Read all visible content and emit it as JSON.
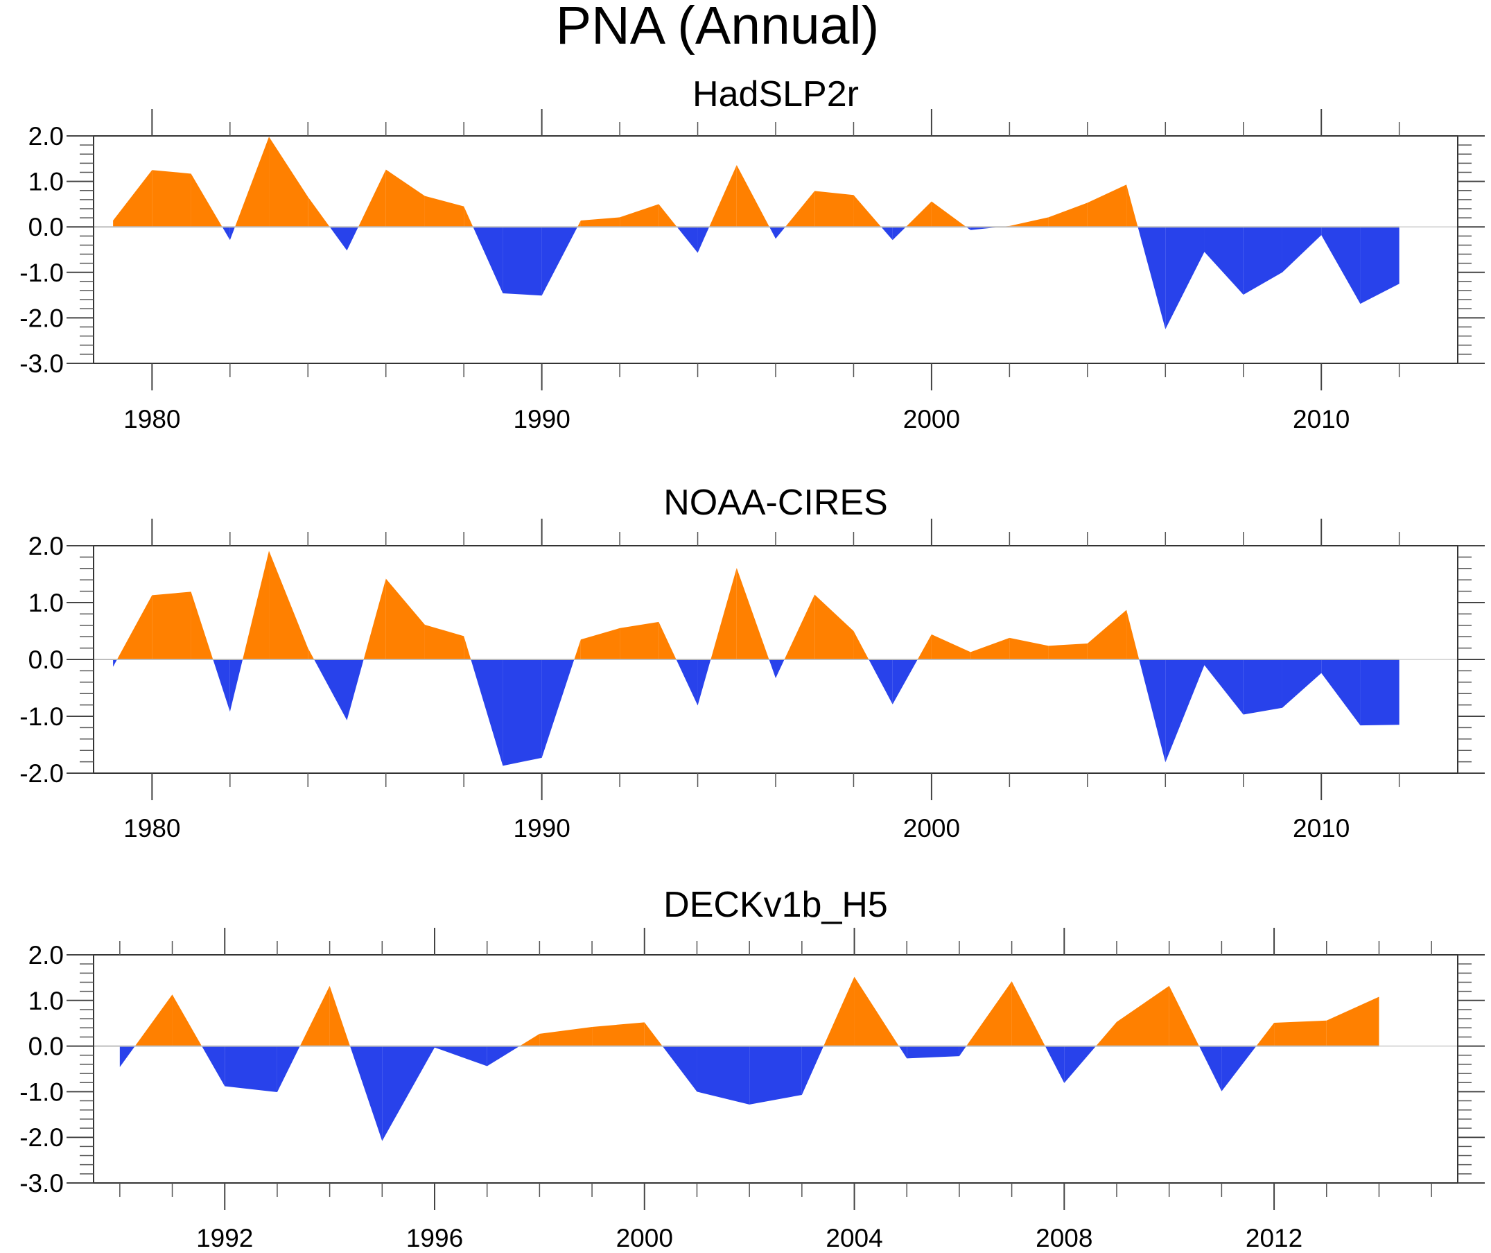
{
  "chart_data": {
    "type": "area",
    "title": "PNA (Annual)",
    "positive_color": "#ff8000",
    "negative_color": "#2842eb",
    "panels": [
      {
        "subtitle": "HadSLP2r",
        "xlim": [
          1978.5,
          2013.5
        ],
        "ylim": [
          -3.0,
          2.0
        ],
        "x_major_ticks": [
          1980,
          1990,
          2000,
          2010
        ],
        "x_minor_step": 2,
        "x_tick_labels": [
          "1980",
          "1990",
          "2000",
          "2010"
        ],
        "y_major_ticks": [
          2.0,
          1.0,
          0.0,
          -1.0,
          -2.0,
          -3.0
        ],
        "y_tick_labels": [
          "2.0",
          "1.0",
          "0.0",
          "-1.0",
          "-2.0",
          "-3.0"
        ],
        "y_minor_step": 0.2,
        "x": [
          1979,
          1980,
          1981,
          1982,
          1983,
          1984,
          1985,
          1986,
          1987,
          1988,
          1989,
          1990,
          1991,
          1992,
          1993,
          1994,
          1995,
          1996,
          1997,
          1998,
          1999,
          2000,
          2001,
          2002,
          2003,
          2004,
          2005,
          2006,
          2007,
          2008,
          2009,
          2010,
          2011,
          2012
        ],
        "values": [
          0.14,
          1.25,
          1.17,
          -0.29,
          1.98,
          0.66,
          -0.52,
          1.26,
          0.68,
          0.45,
          -1.46,
          -1.51,
          0.14,
          0.21,
          0.5,
          -0.57,
          1.36,
          -0.26,
          0.79,
          0.7,
          -0.29,
          0.56,
          -0.07,
          0.02,
          0.21,
          0.53,
          0.93,
          -2.25,
          -0.55,
          -1.49,
          -1.0,
          -0.18,
          -1.69,
          -1.25
        ]
      },
      {
        "subtitle": "NOAA-CIRES",
        "xlim": [
          1978.5,
          2013.5
        ],
        "ylim": [
          -2.0,
          2.0
        ],
        "x_major_ticks": [
          1980,
          1990,
          2000,
          2010
        ],
        "x_minor_step": 2,
        "x_tick_labels": [
          "1980",
          "1990",
          "2000",
          "2010"
        ],
        "y_major_ticks": [
          2.0,
          1.0,
          0.0,
          -1.0,
          -2.0
        ],
        "y_tick_labels": [
          "2.0",
          "1.0",
          "0.0",
          "-1.0",
          "-2.0"
        ],
        "y_minor_step": 0.2,
        "x": [
          1979,
          1980,
          1981,
          1982,
          1983,
          1984,
          1985,
          1986,
          1987,
          1988,
          1989,
          1990,
          1991,
          1992,
          1993,
          1994,
          1995,
          1996,
          1997,
          1998,
          1999,
          2000,
          2001,
          2002,
          2003,
          2004,
          2005,
          2006,
          2007,
          2008,
          2009,
          2010,
          2011,
          2012
        ],
        "values": [
          -0.13,
          1.13,
          1.19,
          -0.92,
          1.91,
          0.2,
          -1.07,
          1.42,
          0.61,
          0.41,
          -1.87,
          -1.73,
          0.35,
          0.55,
          0.66,
          -0.81,
          1.61,
          -0.33,
          1.14,
          0.5,
          -0.79,
          0.44,
          0.13,
          0.38,
          0.24,
          0.28,
          0.87,
          -1.81,
          -0.1,
          -0.97,
          -0.85,
          -0.24,
          -1.16,
          -1.15
        ]
      },
      {
        "subtitle": "DECKv1b_H5",
        "xlim": [
          1989.5,
          2015.5
        ],
        "ylim": [
          -3.0,
          2.0
        ],
        "x_major_ticks": [
          1992,
          1996,
          2000,
          2004,
          2008,
          2012
        ],
        "x_minor_step": 1,
        "x_tick_labels": [
          "1992",
          "1996",
          "2000",
          "2004",
          "2008",
          "2012"
        ],
        "y_major_ticks": [
          2.0,
          1.0,
          0.0,
          -1.0,
          -2.0,
          -3.0
        ],
        "y_tick_labels": [
          "2.0",
          "1.0",
          "0.0",
          "-1.0",
          "-2.0",
          "-3.0"
        ],
        "y_minor_step": 0.2,
        "x": [
          1990,
          1991,
          1992,
          1993,
          1994,
          1995,
          1996,
          1997,
          1998,
          1999,
          2000,
          2001,
          2002,
          2003,
          2004,
          2005,
          2006,
          2007,
          2008,
          2009,
          2010,
          2011,
          2012,
          2013,
          2014
        ],
        "values": [
          -0.46,
          1.13,
          -0.88,
          -1.01,
          1.32,
          -2.08,
          -0.03,
          -0.44,
          0.27,
          0.42,
          0.52,
          -1.0,
          -1.28,
          -1.07,
          1.52,
          -0.27,
          -0.22,
          1.42,
          -0.81,
          0.53,
          1.32,
          -0.99,
          0.51,
          0.56,
          1.08
        ]
      }
    ]
  }
}
